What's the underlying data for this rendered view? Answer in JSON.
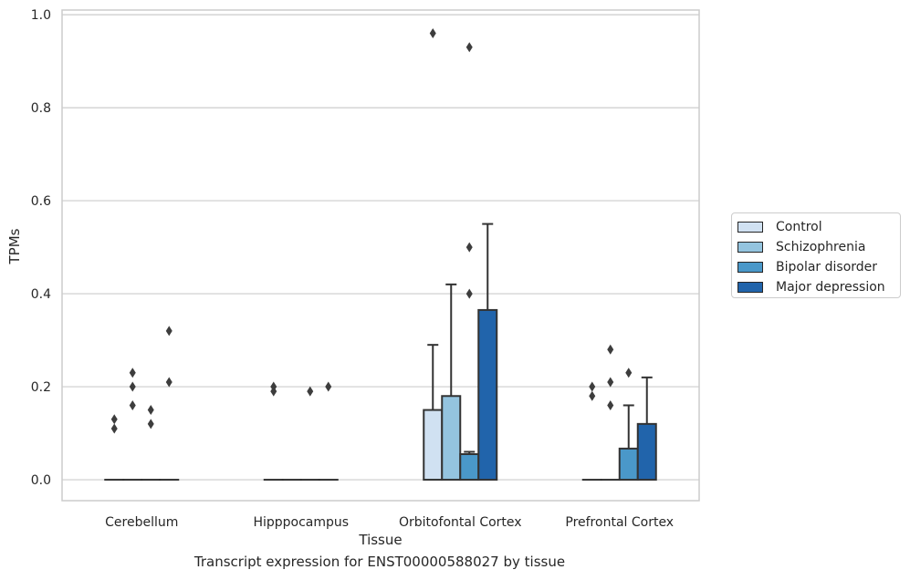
{
  "chart_data": {
    "type": "bar",
    "xlabel": "Tissue",
    "ylabel": "TPMs",
    "caption": "Transcript expression for ENST00000588027 by tissue",
    "ylim": [
      -0.045,
      1.01
    ],
    "yticks": [
      0.0,
      0.2,
      0.4,
      0.6,
      0.8,
      1.0
    ],
    "ytick_labels": [
      "0.0",
      "0.2",
      "0.4",
      "0.6",
      "0.8",
      "1.0"
    ],
    "grid": "horizontal",
    "legend_position": "right",
    "categories": [
      "Cerebellum",
      "Hipppocampus",
      "Orbitofontal Cortex",
      "Prefrontal Cortex"
    ],
    "series": [
      {
        "name": "Control",
        "color": "#d0e1f2",
        "values": [
          0,
          0,
          0.15,
          0
        ],
        "whisker_high": [
          0,
          0,
          0.29,
          0
        ],
        "outliers": [
          [
            0.13,
            0.11
          ],
          [
            0.19,
            0.2
          ],
          [
            0.96
          ],
          [
            0.2,
            0.18
          ]
        ]
      },
      {
        "name": "Schizophrenia",
        "color": "#94c4df",
        "values": [
          0,
          0,
          0.18,
          0
        ],
        "whisker_high": [
          0,
          0,
          0.42,
          0
        ],
        "outliers": [
          [
            0.23,
            0.2,
            0.16
          ],
          [],
          [],
          [
            0.28,
            0.21,
            0.16
          ]
        ]
      },
      {
        "name": "Bipolar disorder",
        "color": "#4a98c9",
        "values": [
          0,
          0,
          0.055,
          0.067
        ],
        "whisker_high": [
          0,
          0,
          0.06,
          0.16
        ],
        "outliers": [
          [
            0.15,
            0.12
          ],
          [
            0.19
          ],
          [
            0.93,
            0.5,
            0.4
          ],
          [
            0.23
          ]
        ]
      },
      {
        "name": "Major depression",
        "color": "#2164ab",
        "values": [
          0,
          0,
          0.365,
          0.12
        ],
        "whisker_high": [
          0,
          0,
          0.55,
          0.22
        ],
        "outliers": [
          [
            0.32,
            0.21
          ],
          [
            0.2
          ],
          [],
          []
        ]
      }
    ]
  }
}
